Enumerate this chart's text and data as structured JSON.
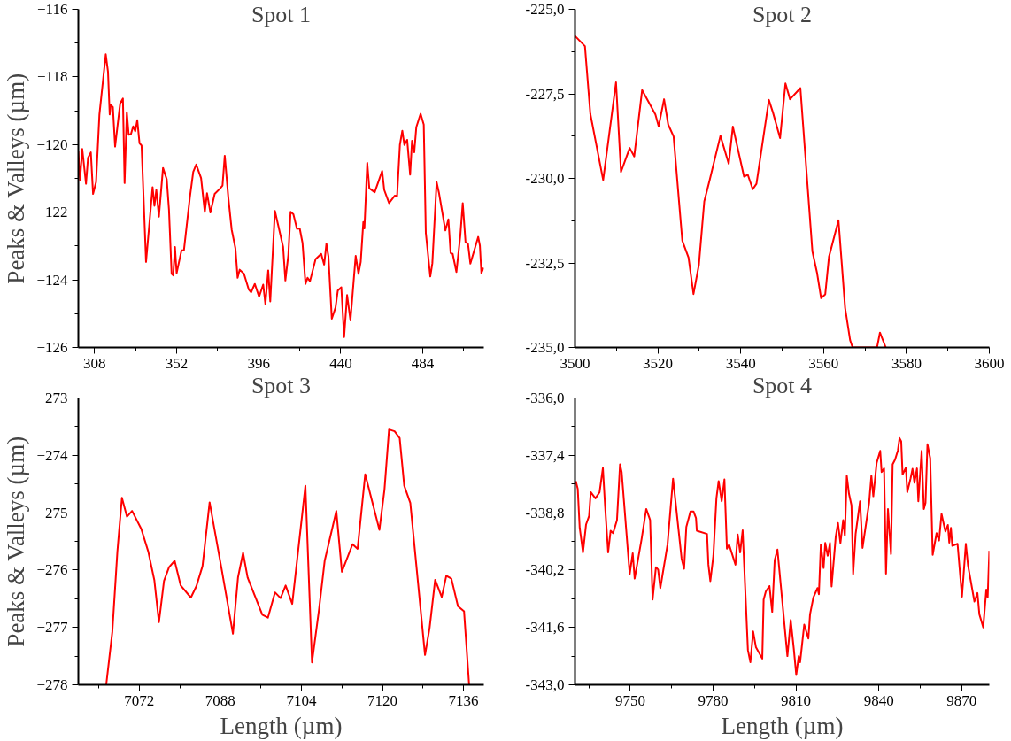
{
  "chart_data": [
    {
      "type": "line",
      "title": "Spot 1",
      "ylabel": "Peaks & Valleys (µm)",
      "color": "#ff0000",
      "x": [
        299.3,
        300.2,
        301.4,
        303.4,
        304.5,
        306.0,
        307.2,
        308.8,
        310.6,
        314.0,
        315.2,
        316.1,
        316.7,
        317.8,
        319.0,
        321.7,
        323.2,
        324.1,
        325.3,
        326.3,
        327.5,
        328.7,
        329.8,
        330.9,
        332.1,
        333.2,
        335.6,
        339.1,
        340.1,
        341.1,
        342.5,
        344.7,
        346.7,
        347.9,
        349.3,
        350.2,
        351.1,
        352.0,
        354.6,
        355.9,
        359.1,
        360.9,
        362.5,
        365.1,
        367.1,
        368.3,
        370.1,
        372.4,
        375.1,
        376.6,
        377.8,
        379.7,
        381.5,
        383.5,
        384.7,
        385.8,
        388.1,
        390.7,
        391.9,
        393.9,
        396.2,
        398.4,
        399.6,
        401.1,
        402.2,
        404.7,
        409.1,
        410.3,
        411.9,
        413.1,
        414.6,
        416.5,
        418.0,
        419.5,
        421.1,
        422.2,
        423.5,
        426.5,
        429.5,
        431.1,
        432.3,
        433.4,
        435.2,
        437.2,
        438.4,
        440.3,
        441.8,
        443.4,
        445.2,
        448.0,
        449.5,
        450.7,
        452.1,
        452.7,
        454.2,
        455.3,
        458.2,
        462.2,
        463.3,
        465.9,
        469.0,
        470.2,
        471.7,
        473.0,
        474.1,
        475.6,
        477.2,
        478.2,
        479.4,
        480.5,
        482.8,
        484.5,
        485.6,
        488.0,
        489.1,
        491.4,
        492.6,
        496.1,
        497.7,
        498.9,
        500.0,
        502.0,
        504.1,
        505.4,
        506.9,
        508.2,
        509.5,
        513.7,
        514.6,
        515.4,
        516.6
      ],
      "values": [
        -120.2,
        -121.06,
        -120.13,
        -121.16,
        -120.39,
        -120.23,
        -121.46,
        -121.11,
        -119.11,
        -117.33,
        -117.85,
        -119.11,
        -118.83,
        -118.89,
        -120.06,
        -118.79,
        -118.64,
        -121.14,
        -119.04,
        -119.71,
        -119.69,
        -119.46,
        -119.61,
        -119.28,
        -119.96,
        -120.03,
        -123.47,
        -121.26,
        -121.81,
        -121.34,
        -122.13,
        -120.69,
        -121.03,
        -121.93,
        -123.82,
        -123.87,
        -123.03,
        -123.8,
        -123.13,
        -123.13,
        -121.56,
        -120.81,
        -120.59,
        -120.99,
        -121.99,
        -121.44,
        -122.01,
        -121.46,
        -121.31,
        -121.21,
        -120.33,
        -121.56,
        -122.51,
        -123.06,
        -123.94,
        -123.7,
        -123.82,
        -124.29,
        -124.37,
        -124.12,
        -124.5,
        -124.14,
        -124.72,
        -123.72,
        -124.64,
        -121.96,
        -123.03,
        -124.02,
        -123.26,
        -121.99,
        -122.06,
        -122.49,
        -122.48,
        -122.91,
        -124.12,
        -123.94,
        -124.04,
        -123.39,
        -123.23,
        -123.55,
        -122.93,
        -123.31,
        -125.15,
        -124.82,
        -124.32,
        -124.22,
        -125.69,
        -124.45,
        -125.2,
        -123.29,
        -123.82,
        -123.47,
        -122.29,
        -122.48,
        -120.54,
        -121.29,
        -121.41,
        -120.78,
        -121.34,
        -121.73,
        -121.51,
        -121.53,
        -120.01,
        -119.59,
        -120.01,
        -119.86,
        -120.89,
        -119.89,
        -120.23,
        -119.49,
        -119.09,
        -119.41,
        -122.61,
        -123.9,
        -123.51,
        -121.11,
        -121.41,
        -122.54,
        -122.21,
        -123.21,
        -123.23,
        -123.77,
        -122.69,
        -121.73,
        -122.89,
        -122.93,
        -123.52,
        -122.73,
        -122.99,
        -123.8,
        -123.64
      ],
      "xlim": [
        299.3,
        516.7
      ],
      "ylim": [
        -126,
        -116
      ],
      "xticks": [
        308,
        {
          "value": 330,
          "label": null
        },
        352,
        {
          "value": 374,
          "label": null
        },
        396,
        {
          "value": 418,
          "label": null
        },
        440,
        {
          "value": 462,
          "label": null
        },
        484,
        {
          "value": 506,
          "label": null
        }
      ],
      "yticks": [
        -126,
        {
          "value": -125,
          "label": null
        },
        -124,
        {
          "value": -123,
          "label": null
        },
        -122,
        {
          "value": -121,
          "label": null
        },
        -120,
        {
          "value": -119,
          "label": null
        },
        -118,
        {
          "value": -117,
          "label": null
        },
        -116
      ]
    },
    {
      "type": "line",
      "title": "Spot 2",
      "color": "#ff0000",
      "x": [
        3500.0,
        3502.4,
        3503.7,
        3506.8,
        3509.9,
        3511.1,
        3513.2,
        3514.3,
        3516.2,
        3519.4,
        3520.2,
        3521.5,
        3522.5,
        3523.8,
        3525.9,
        3527.4,
        3528.6,
        3529.9,
        3531.2,
        3532.5,
        3535.1,
        3537.1,
        3538.1,
        3540.8,
        3541.7,
        3542.9,
        3543.8,
        3546.8,
        3547.8,
        3549.5,
        3550.8,
        3551.9,
        3554.4,
        3557.3,
        3558.4,
        3559.4,
        3560.4,
        3561.3,
        3563.6,
        3565.2,
        3566.4,
        3567.0,
        3572.9,
        3573.6,
        3575.0
      ],
      "values": [
        -225.79,
        -226.09,
        -228.09,
        -230.05,
        -227.16,
        -229.81,
        -229.1,
        -229.35,
        -227.39,
        -228.11,
        -228.46,
        -227.66,
        -228.41,
        -228.76,
        -231.84,
        -232.34,
        -233.42,
        -232.56,
        -230.68,
        -230.05,
        -228.74,
        -229.57,
        -228.47,
        -229.95,
        -229.89,
        -230.32,
        -230.16,
        -227.68,
        -228.06,
        -228.81,
        -227.19,
        -227.66,
        -227.33,
        -232.16,
        -232.78,
        -233.54,
        -233.43,
        -232.32,
        -231.24,
        -233.83,
        -234.78,
        -235.0,
        -235.0,
        -234.56,
        -235.0
      ],
      "xlim": [
        3500,
        3600
      ],
      "ylim": [
        -235,
        -225
      ],
      "xticks": [
        3500,
        {
          "value": 3510,
          "label": null
        },
        3520,
        {
          "value": 3530,
          "label": null
        },
        3540,
        {
          "value": 3550,
          "label": null
        },
        3560,
        {
          "value": 3570,
          "label": null
        },
        3580,
        {
          "value": 3590,
          "label": null
        },
        3600
      ],
      "yticks": [
        {
          "value": -235,
          "label": "-235,0"
        },
        {
          "value": -233.75,
          "label": null
        },
        {
          "value": -232.5,
          "label": "-232,5"
        },
        {
          "value": -231.25,
          "label": null
        },
        {
          "value": -230,
          "label": "-230,0"
        },
        {
          "value": -228.75,
          "label": null
        },
        {
          "value": -227.5,
          "label": "-227,5"
        },
        {
          "value": -226.25,
          "label": null
        },
        {
          "value": -225,
          "label": "-225,0"
        }
      ]
    },
    {
      "type": "line",
      "title": "Spot 3",
      "xlabel": "Length (µm)",
      "ylabel": "Peaks & Valleys (µm)",
      "color": "#ff0000",
      "x": [
        7065.5,
        7066.7,
        7067.7,
        7068.6,
        7069.6,
        7070.6,
        7072.4,
        7073.8,
        7075.0,
        7075.9,
        7076.9,
        7077.9,
        7079.0,
        7080.2,
        7082.2,
        7083.3,
        7084.5,
        7085.9,
        7088.3,
        7090.5,
        7091.5,
        7092.5,
        7093.4,
        7096.3,
        7097.4,
        7098.8,
        7099.9,
        7100.9,
        7102.2,
        7104.8,
        7106.1,
        7107.5,
        7108.6,
        7110.9,
        7112.0,
        7114.1,
        7115.1,
        7116.6,
        7119.4,
        7120.4,
        7121.3,
        7122.4,
        7123.4,
        7124.3,
        7125.5,
        7128.4,
        7129.3,
        7130.4,
        7131.7,
        7132.6,
        7133.6,
        7134.9,
        7136.1,
        7137.1
      ],
      "values": [
        -278.0,
        -277.08,
        -275.68,
        -274.74,
        -275.07,
        -274.97,
        -275.28,
        -275.68,
        -276.18,
        -276.91,
        -276.19,
        -275.95,
        -275.84,
        -276.27,
        -276.48,
        -276.28,
        -275.93,
        -274.82,
        -276.0,
        -277.11,
        -276.13,
        -275.7,
        -276.13,
        -276.78,
        -276.83,
        -276.39,
        -276.49,
        -276.27,
        -276.59,
        -274.53,
        -277.61,
        -276.68,
        -275.84,
        -274.97,
        -276.03,
        -275.55,
        -275.63,
        -274.33,
        -275.3,
        -274.6,
        -273.55,
        -273.58,
        -273.7,
        -274.53,
        -274.83,
        -277.48,
        -277.01,
        -276.17,
        -276.47,
        -276.1,
        -276.15,
        -276.63,
        -276.72,
        -278.0
      ],
      "xlim": [
        7060,
        7140
      ],
      "ylim": [
        -278,
        -273
      ],
      "xticks": [
        {
          "value": 7064,
          "label": null
        },
        7072,
        {
          "value": 7080,
          "label": null
        },
        7088,
        {
          "value": 7096,
          "label": null
        },
        7104,
        {
          "value": 7112,
          "label": null
        },
        7120,
        {
          "value": 7128,
          "label": null
        },
        7136
      ],
      "yticks": [
        -278,
        {
          "value": -277.5,
          "label": null
        },
        -277,
        {
          "value": -276.5,
          "label": null
        },
        -276,
        {
          "value": -275.5,
          "label": null
        },
        -275,
        {
          "value": -274.5,
          "label": null
        },
        -274,
        {
          "value": -273.5,
          "label": null
        },
        -273
      ]
    },
    {
      "type": "line",
      "title": "Spot 4",
      "xlabel": "Length (µm)",
      "color": "#ff0000",
      "x": [
        9730.3,
        9731.0,
        9731.7,
        9732.9,
        9734.0,
        9735.1,
        9735.7,
        9737.4,
        9738.9,
        9740.1,
        9740.9,
        9742.0,
        9742.9,
        9743.8,
        9745.2,
        9746.3,
        9746.9,
        9749.8,
        9750.9,
        9751.6,
        9754.1,
        9755.8,
        9757.2,
        9758.1,
        9759.3,
        9760.1,
        9760.9,
        9763.5,
        9765.5,
        9768.6,
        9769.5,
        9770.3,
        9771.8,
        9772.9,
        9773.8,
        9774.1,
        9777.8,
        9778.3,
        9779.0,
        9780.1,
        9781.2,
        9782.0,
        9783.1,
        9784.1,
        9785.0,
        9785.8,
        9788.1,
        9788.9,
        9789.8,
        9790.7,
        9792.6,
        9793.5,
        9794.5,
        9795.5,
        9797.8,
        9798.3,
        9799.1,
        9800.4,
        9801.4,
        9802.3,
        9803.3,
        9806.9,
        9808.1,
        9809.2,
        9810.1,
        9811.0,
        9811.5,
        9813.0,
        9814.5,
        9815.1,
        9816.3,
        9817.8,
        9818.3,
        9819.0,
        9820.0,
        9820.6,
        9821.5,
        9822.3,
        9822.9,
        9824.4,
        9825.2,
        9826.1,
        9827.1,
        9827.7,
        9828.4,
        9829.2,
        9830.1,
        9830.7,
        9831.6,
        9833.2,
        9834.1,
        9836.5,
        9837.3,
        9838.0,
        9839.2,
        9840.5,
        9841.0,
        9841.9,
        9842.6,
        9843.3,
        9844.4,
        9845.0,
        9845.9,
        9846.9,
        9847.5,
        9848.1,
        9848.6,
        9849.8,
        9850.3,
        9851.5,
        9852.2,
        9852.9,
        9853.8,
        9854.3,
        9855.5,
        9856.3,
        9856.9,
        9857.6,
        9858.6,
        9859.5,
        9860.9,
        9861.8,
        9862.7,
        9864.1,
        9865.0,
        9865.5,
        9866.1,
        9866.6,
        9868.5,
        9870.1,
        9871.5,
        9872.3,
        9874.6,
        9875.7,
        9876.4,
        9877.8,
        9878.9,
        9879.4,
        9880.0
      ],
      "values": [
        -338.03,
        -338.22,
        -339.17,
        -339.77,
        -339.09,
        -338.88,
        -338.3,
        -338.45,
        -338.3,
        -337.71,
        -338.64,
        -339.77,
        -339.24,
        -339.3,
        -338.98,
        -337.62,
        -337.81,
        -340.3,
        -339.79,
        -340.41,
        -339.45,
        -338.71,
        -338.98,
        -340.92,
        -340.13,
        -340.19,
        -340.64,
        -339.58,
        -337.97,
        -339.92,
        -340.17,
        -339.15,
        -338.77,
        -338.77,
        -338.93,
        -339.24,
        -339.32,
        -340.07,
        -340.47,
        -339.85,
        -338.45,
        -338.03,
        -338.52,
        -337.99,
        -339.68,
        -339.58,
        -340.07,
        -339.33,
        -339.77,
        -339.23,
        -342.15,
        -342.45,
        -341.7,
        -342.08,
        -342.36,
        -340.92,
        -340.72,
        -340.59,
        -341.22,
        -339.96,
        -339.7,
        -342.3,
        -341.42,
        -342.11,
        -342.76,
        -342.3,
        -342.45,
        -341.53,
        -341.87,
        -341.28,
        -340.87,
        -340.64,
        -340.79,
        -339.58,
        -340.15,
        -339.54,
        -339.85,
        -339.54,
        -340.6,
        -339.39,
        -339.05,
        -339.54,
        -338.98,
        -339.36,
        -337.9,
        -338.34,
        -338.62,
        -340.3,
        -339.32,
        -338.52,
        -339.66,
        -338.55,
        -337.9,
        -338.4,
        -337.59,
        -337.29,
        -337.81,
        -337.72,
        -340.29,
        -338.71,
        -339.81,
        -337.62,
        -337.5,
        -337.28,
        -336.98,
        -337.06,
        -337.87,
        -337.7,
        -338.3,
        -337.96,
        -337.73,
        -338.07,
        -337.72,
        -338.52,
        -337.29,
        -338.71,
        -338.56,
        -337.13,
        -337.47,
        -339.83,
        -339.3,
        -339.48,
        -338.83,
        -339.26,
        -339.1,
        -339.53,
        -339.17,
        -339.61,
        -339.56,
        -340.85,
        -339.56,
        -340.09,
        -340.97,
        -340.76,
        -341.28,
        -341.6,
        -340.68,
        -340.87,
        -339.73
      ],
      "xlim": [
        9730,
        9880
      ],
      "ylim": [
        -343,
        -336
      ],
      "xticks": [
        {
          "value": 9735,
          "label": null
        },
        9750,
        {
          "value": 9765,
          "label": null
        },
        9780,
        {
          "value": 9795,
          "label": null
        },
        9810,
        {
          "value": 9825,
          "label": null
        },
        9840,
        {
          "value": 9855,
          "label": null
        },
        9870
      ],
      "yticks": [
        {
          "value": -343,
          "label": "-343,0"
        },
        {
          "value": -342.3,
          "label": null
        },
        {
          "value": -341.6,
          "label": "-341,6"
        },
        {
          "value": -340.9,
          "label": null
        },
        {
          "value": -340.2,
          "label": "-340,2"
        },
        {
          "value": -339.5,
          "label": null
        },
        {
          "value": -338.8,
          "label": "-338,8"
        },
        {
          "value": -338.1,
          "label": null
        },
        {
          "value": -337.4,
          "label": "-337,4"
        },
        {
          "value": -336.7,
          "label": null
        },
        {
          "value": -336,
          "label": "-336,0"
        }
      ]
    }
  ]
}
